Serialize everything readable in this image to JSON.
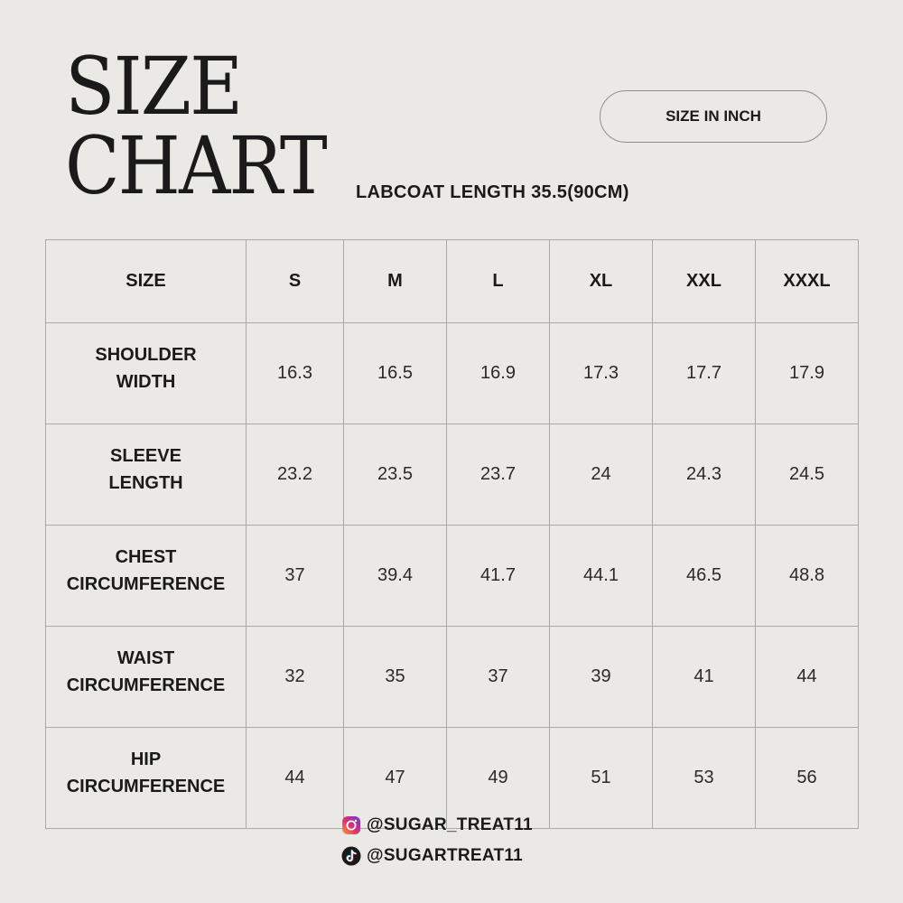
{
  "header": {
    "title_line1": "SIZE",
    "title_line2": "CHART",
    "subtitle": "LABCOAT LENGTH 35.5(90CM)",
    "unit_label": "SIZE IN INCH"
  },
  "table": {
    "columns": [
      "SIZE",
      "S",
      "M",
      "L",
      "XL",
      "XXL",
      "XXXL"
    ],
    "rows": [
      {
        "label_lines": [
          "SHOULDER",
          "WIDTH"
        ],
        "values": [
          "16.3",
          "16.5",
          "16.9",
          "17.3",
          "17.7",
          "17.9"
        ]
      },
      {
        "label_lines": [
          "SLEEVE",
          "LENGTH"
        ],
        "values": [
          "23.2",
          "23.5",
          "23.7",
          "24",
          "24.3",
          "24.5"
        ]
      },
      {
        "label_lines": [
          "CHEST",
          "CIRCUMFERENCE"
        ],
        "values": [
          "37",
          "39.4",
          "41.7",
          "44.1",
          "46.5",
          "48.8"
        ]
      },
      {
        "label_lines": [
          "WAIST",
          "CIRCUMFERENCE"
        ],
        "values": [
          "32",
          "35",
          "37",
          "39",
          "41",
          "44"
        ]
      },
      {
        "label_lines": [
          "HIP",
          "CIRCUMFERENCE"
        ],
        "values": [
          "44",
          "47",
          "49",
          "51",
          "53",
          "56"
        ]
      }
    ]
  },
  "footer": {
    "instagram": {
      "icon": "instagram-icon",
      "handle": "@SUGAR_TREAT11"
    },
    "tiktok": {
      "icon": "tiktok-icon",
      "handle": "@SUGARTREAT11"
    }
  },
  "colors": {
    "background": "#ebe9e5",
    "text": "#1a1a1a",
    "border": "#a9a9a9"
  }
}
